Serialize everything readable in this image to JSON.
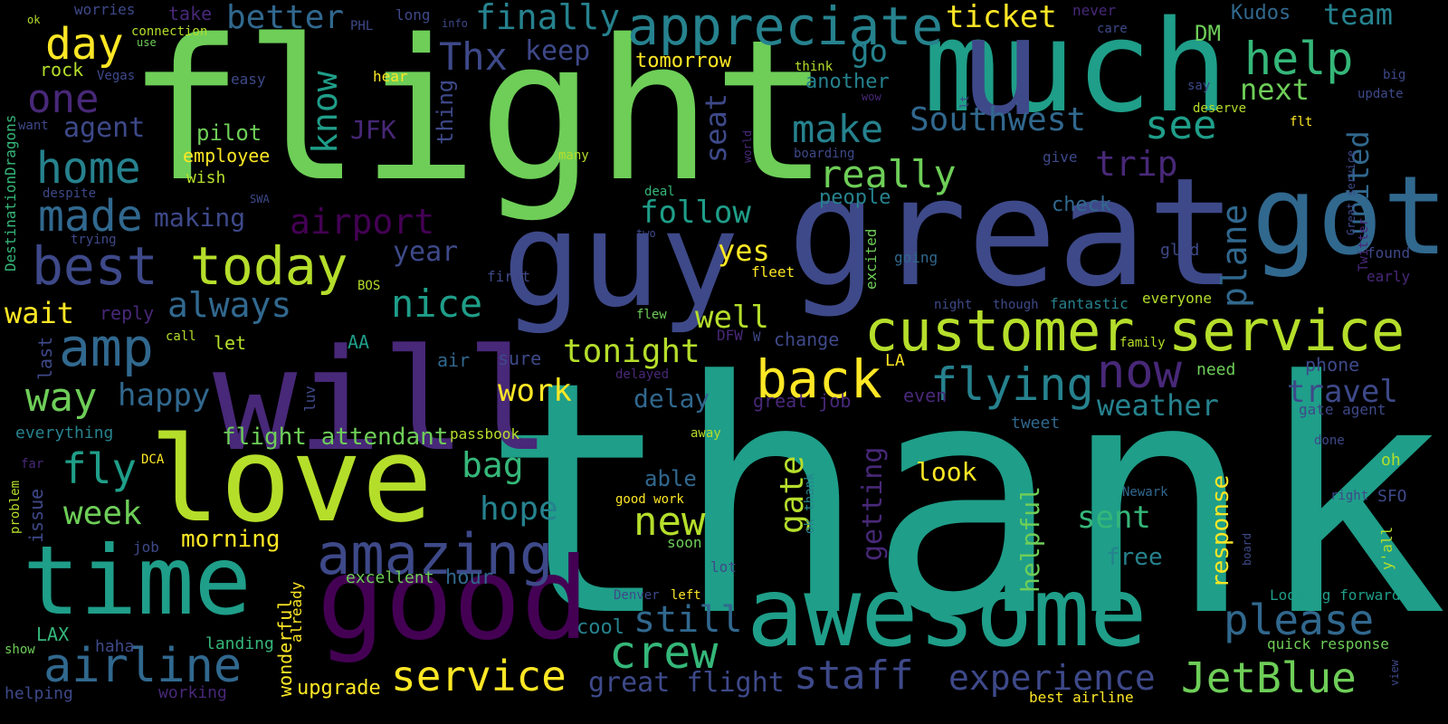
{
  "background": "#000000",
  "palette": {
    "yellow": "#fde725",
    "lime": "#b5de2b",
    "lgreen": "#6ece58",
    "green": "#35b779",
    "teal": "#1f9e89",
    "cyan": "#26828e",
    "blue": "#31688e",
    "indigo": "#3e4989",
    "purple": "#482878",
    "violet": "#440154"
  },
  "words": [
    {
      "text": "thank",
      "size": 355,
      "color": "teal"
    },
    {
      "text": "flight",
      "size": 215,
      "color": "lgreen"
    },
    {
      "text": "great",
      "size": 165,
      "color": "indigo"
    },
    {
      "text": "will",
      "size": 155,
      "color": "purple"
    },
    {
      "text": "guy",
      "size": 145,
      "color": "indigo"
    },
    {
      "text": "much",
      "size": 140,
      "color": "teal"
    },
    {
      "text": "u",
      "size": 150,
      "color": "indigo"
    },
    {
      "text": "got",
      "size": 120,
      "color": "blue"
    },
    {
      "text": "love",
      "size": 130,
      "color": "lime"
    },
    {
      "text": "good",
      "size": 125,
      "color": "violet"
    },
    {
      "text": "awesome",
      "size": 105,
      "color": "teal"
    },
    {
      "text": "time",
      "size": 105,
      "color": "teal"
    },
    {
      "text": "amazing",
      "size": 62,
      "color": "indigo"
    },
    {
      "text": "customer service",
      "size": 62,
      "color": "lime"
    },
    {
      "text": "appreciate",
      "size": 58,
      "color": "cyan"
    },
    {
      "text": "today",
      "size": 58,
      "color": "lime"
    },
    {
      "text": "best",
      "size": 58,
      "color": "indigo"
    },
    {
      "text": "back",
      "size": 58,
      "color": "yellow"
    },
    {
      "text": "amp",
      "size": 58,
      "color": "blue"
    },
    {
      "text": "help",
      "size": 50,
      "color": "green"
    },
    {
      "text": "made",
      "size": 48,
      "color": "blue"
    },
    {
      "text": "day",
      "size": 48,
      "color": "yellow"
    },
    {
      "text": "home",
      "size": 48,
      "color": "cyan"
    },
    {
      "text": "airline",
      "size": 52,
      "color": "blue"
    },
    {
      "text": "now",
      "size": 52,
      "color": "purple"
    },
    {
      "text": "flying",
      "size": 50,
      "color": "cyan"
    },
    {
      "text": "crew",
      "size": 50,
      "color": "green"
    },
    {
      "text": "service",
      "size": 46,
      "color": "yellow"
    },
    {
      "text": "JetBlue",
      "size": 46,
      "color": "lgreen"
    },
    {
      "text": "please",
      "size": 46,
      "color": "blue"
    },
    {
      "text": "staff",
      "size": 44,
      "color": "indigo"
    },
    {
      "text": "experience",
      "size": 38,
      "color": "indigo"
    },
    {
      "text": "still",
      "size": 40,
      "color": "blue"
    },
    {
      "text": "new",
      "size": 44,
      "color": "lime"
    },
    {
      "text": "nice",
      "size": 42,
      "color": "teal"
    },
    {
      "text": "fly",
      "size": 46,
      "color": "teal"
    },
    {
      "text": "way",
      "size": 44,
      "color": "lgreen"
    },
    {
      "text": "really",
      "size": 42,
      "color": "lgreen"
    },
    {
      "text": "make",
      "size": 42,
      "color": "cyan"
    },
    {
      "text": "see",
      "size": 44,
      "color": "teal"
    },
    {
      "text": "one",
      "size": 44,
      "color": "purple"
    },
    {
      "text": "better",
      "size": 36,
      "color": "blue"
    },
    {
      "text": "finally",
      "size": 38,
      "color": "cyan"
    },
    {
      "text": "Thx",
      "size": 42,
      "color": "indigo"
    },
    {
      "text": "team",
      "size": 32,
      "color": "cyan"
    },
    {
      "text": "ticket",
      "size": 34,
      "color": "yellow"
    },
    {
      "text": "next",
      "size": 32,
      "color": "lgreen"
    },
    {
      "text": "trip",
      "size": 38,
      "color": "purple"
    },
    {
      "text": "Southwest",
      "size": 36,
      "color": "blue"
    },
    {
      "text": "airport",
      "size": 38,
      "color": "violet"
    },
    {
      "text": "always",
      "size": 38,
      "color": "blue"
    },
    {
      "text": "tonight",
      "size": 36,
      "color": "lime"
    },
    {
      "text": "happy",
      "size": 34,
      "color": "blue"
    },
    {
      "text": "work",
      "size": 34,
      "color": "yellow"
    },
    {
      "text": "week",
      "size": 36,
      "color": "lgreen"
    },
    {
      "text": "bag",
      "size": 38,
      "color": "green"
    },
    {
      "text": "hope",
      "size": 36,
      "color": "cyan"
    },
    {
      "text": "sent",
      "size": 34,
      "color": "green"
    },
    {
      "text": "travel",
      "size": 34,
      "color": "indigo"
    },
    {
      "text": "weather",
      "size": 32,
      "color": "cyan"
    },
    {
      "text": "follow",
      "size": 34,
      "color": "teal"
    },
    {
      "text": "well",
      "size": 34,
      "color": "lime"
    },
    {
      "text": "yes",
      "size": 32,
      "color": "yellow"
    },
    {
      "text": "year",
      "size": 30,
      "color": "indigo"
    },
    {
      "text": "wait",
      "size": 32,
      "color": "yellow"
    },
    {
      "text": "delay",
      "size": 28,
      "color": "blue"
    },
    {
      "text": "look",
      "size": 28,
      "color": "yellow"
    },
    {
      "text": "keep",
      "size": 30,
      "color": "indigo"
    },
    {
      "text": "go",
      "size": 34,
      "color": "cyan"
    },
    {
      "text": "agent",
      "size": 30,
      "color": "indigo"
    },
    {
      "text": "making",
      "size": 28,
      "color": "indigo"
    },
    {
      "text": "morning",
      "size": 26,
      "color": "yellow"
    },
    {
      "text": "flight attendant",
      "size": 26,
      "color": "lgreen"
    },
    {
      "text": "great flight",
      "size": 30,
      "color": "indigo"
    },
    {
      "text": "free",
      "size": 26,
      "color": "cyan"
    },
    {
      "text": "tomorrow",
      "size": 22,
      "color": "yellow"
    },
    {
      "text": "another",
      "size": 22,
      "color": "cyan"
    },
    {
      "text": "pilot",
      "size": 24,
      "color": "lgreen"
    },
    {
      "text": "employee",
      "size": 20,
      "color": "yellow"
    },
    {
      "text": "people",
      "size": 22,
      "color": "cyan"
    },
    {
      "text": "check",
      "size": 22,
      "color": "blue"
    },
    {
      "text": "JFK",
      "size": 28,
      "color": "purple"
    },
    {
      "text": "hour",
      "size": 22,
      "color": "blue"
    },
    {
      "text": "cool",
      "size": 22,
      "color": "cyan"
    },
    {
      "text": "upgrade",
      "size": 22,
      "color": "yellow"
    },
    {
      "text": "excellent",
      "size": 18,
      "color": "lgreen"
    },
    {
      "text": "landing",
      "size": 18,
      "color": "green"
    },
    {
      "text": "haha",
      "size": 18,
      "color": "indigo"
    },
    {
      "text": "working",
      "size": 18,
      "color": "purple"
    },
    {
      "text": "helping",
      "size": 18,
      "color": "indigo"
    },
    {
      "text": "LAX",
      "size": 20,
      "color": "green"
    },
    {
      "text": "show",
      "size": 14,
      "color": "lgreen"
    },
    {
      "text": "job",
      "size": 16,
      "color": "indigo"
    },
    {
      "text": "AA",
      "size": 20,
      "color": "teal"
    },
    {
      "text": "let",
      "size": 20,
      "color": "lime"
    },
    {
      "text": "reply",
      "size": 20,
      "color": "purple"
    },
    {
      "text": "air",
      "size": 20,
      "color": "blue"
    },
    {
      "text": "sure",
      "size": 20,
      "color": "indigo"
    },
    {
      "text": "call",
      "size": 14,
      "color": "lime"
    },
    {
      "text": "flew",
      "size": 14,
      "color": "lgreen"
    },
    {
      "text": "BOS",
      "size": 14,
      "color": "lime"
    },
    {
      "text": "first",
      "size": 16,
      "color": "indigo"
    },
    {
      "text": "DFW",
      "size": 16,
      "color": "purple"
    },
    {
      "text": "fleet",
      "size": 16,
      "color": "yellow"
    },
    {
      "text": "two",
      "size": 12,
      "color": "indigo"
    },
    {
      "text": "deal",
      "size": 14,
      "color": "green"
    },
    {
      "text": "SWA",
      "size": 12,
      "color": "indigo"
    },
    {
      "text": "many",
      "size": 14,
      "color": "lime"
    },
    {
      "text": "boarding",
      "size": 14,
      "color": "indigo"
    },
    {
      "text": "think",
      "size": 14,
      "color": "lime"
    },
    {
      "text": "wow",
      "size": 12,
      "color": "purple"
    },
    {
      "text": "easy",
      "size": 16,
      "color": "indigo"
    },
    {
      "text": "hear",
      "size": 16,
      "color": "yellow"
    },
    {
      "text": "info",
      "size": 12,
      "color": "indigo"
    },
    {
      "text": "PHL",
      "size": 14,
      "color": "indigo"
    },
    {
      "text": "long",
      "size": 16,
      "color": "indigo"
    },
    {
      "text": "worries",
      "size": 16,
      "color": "indigo"
    },
    {
      "text": "take",
      "size": 20,
      "color": "purple"
    },
    {
      "text": "ok",
      "size": 12,
      "color": "lime"
    },
    {
      "text": "rock",
      "size": 20,
      "color": "lime"
    },
    {
      "text": "Vegas",
      "size": 14,
      "color": "indigo"
    },
    {
      "text": "use",
      "size": 12,
      "color": "lgreen"
    },
    {
      "text": "connection",
      "size": 14,
      "color": "lime"
    },
    {
      "text": "wish",
      "size": 18,
      "color": "lime"
    },
    {
      "text": "want",
      "size": 14,
      "color": "indigo"
    },
    {
      "text": "despite",
      "size": 14,
      "color": "indigo"
    },
    {
      "text": "trying",
      "size": 14,
      "color": "indigo"
    },
    {
      "text": "everything",
      "size": 18,
      "color": "cyan"
    },
    {
      "text": "far",
      "size": 14,
      "color": "purple"
    },
    {
      "text": "DCA",
      "size": 14,
      "color": "yellow"
    },
    {
      "text": "passbook",
      "size": 16,
      "color": "lime"
    },
    {
      "text": "away",
      "size": 14,
      "color": "lime"
    },
    {
      "text": "good work",
      "size": 14,
      "color": "yellow"
    },
    {
      "text": "soon",
      "size": 16,
      "color": "lgreen"
    },
    {
      "text": "able",
      "size": 24,
      "color": "blue"
    },
    {
      "text": "lot",
      "size": 16,
      "color": "indigo"
    },
    {
      "text": "Denver",
      "size": 14,
      "color": "indigo"
    },
    {
      "text": "left",
      "size": 14,
      "color": "yellow"
    },
    {
      "text": "great job",
      "size": 20,
      "color": "purple"
    },
    {
      "text": "change",
      "size": 20,
      "color": "indigo"
    },
    {
      "text": "W",
      "size": 14,
      "color": "indigo"
    },
    {
      "text": "delayed",
      "size": 14,
      "color": "purple"
    },
    {
      "text": "LA",
      "size": 18,
      "color": "yellow"
    },
    {
      "text": "even",
      "size": 20,
      "color": "purple"
    },
    {
      "text": "tweet",
      "size": 18,
      "color": "blue"
    },
    {
      "text": "fantastic",
      "size": 16,
      "color": "cyan"
    },
    {
      "text": "though",
      "size": 14,
      "color": "indigo"
    },
    {
      "text": "night",
      "size": 14,
      "color": "indigo"
    },
    {
      "text": "going",
      "size": 16,
      "color": "blue"
    },
    {
      "text": "glad",
      "size": 18,
      "color": "indigo"
    },
    {
      "text": "everyone",
      "size": 16,
      "color": "lime"
    },
    {
      "text": "family",
      "size": 14,
      "color": "lime"
    },
    {
      "text": "need",
      "size": 18,
      "color": "lgreen"
    },
    {
      "text": "give",
      "size": 16,
      "color": "indigo"
    },
    {
      "text": "care",
      "size": 14,
      "color": "indigo"
    },
    {
      "text": "never",
      "size": 16,
      "color": "purple"
    },
    {
      "text": "Kudos",
      "size": 22,
      "color": "blue"
    },
    {
      "text": "DM",
      "size": 24,
      "color": "lgreen"
    },
    {
      "text": "say",
      "size": 14,
      "color": "indigo"
    },
    {
      "text": "update",
      "size": 14,
      "color": "indigo"
    },
    {
      "text": "deserve",
      "size": 14,
      "color": "lime"
    },
    {
      "text": "flt",
      "size": 14,
      "color": "yellow"
    },
    {
      "text": "big",
      "size": 14,
      "color": "indigo"
    },
    {
      "text": "found",
      "size": 16,
      "color": "indigo"
    },
    {
      "text": "early",
      "size": 16,
      "color": "purple"
    },
    {
      "text": "phone",
      "size": 20,
      "color": "indigo"
    },
    {
      "text": "gate agent",
      "size": 16,
      "color": "indigo"
    },
    {
      "text": "oh",
      "size": 18,
      "color": "lime"
    },
    {
      "text": "done",
      "size": 14,
      "color": "indigo"
    },
    {
      "text": "right",
      "size": 14,
      "color": "indigo"
    },
    {
      "text": "SFO",
      "size": 18,
      "color": "indigo"
    },
    {
      "text": "Newark",
      "size": 14,
      "color": "blue"
    },
    {
      "text": "Looking forward",
      "size": 16,
      "color": "teal"
    },
    {
      "text": "quick response",
      "size": 16,
      "color": "lgreen"
    },
    {
      "text": "best airline",
      "size": 16,
      "color": "yellow"
    },
    {
      "text": "DestinationDragons",
      "size": 16,
      "color": "green",
      "rotate": true
    },
    {
      "text": "know",
      "size": 38,
      "color": "teal",
      "rotate": true
    },
    {
      "text": "thing",
      "size": 24,
      "color": "indigo",
      "rotate": true
    },
    {
      "text": "seat",
      "size": 32,
      "color": "indigo",
      "rotate": true
    },
    {
      "text": "world",
      "size": 12,
      "color": "purple",
      "rotate": true
    },
    {
      "text": "gate",
      "size": 36,
      "color": "lime",
      "rotate": true
    },
    {
      "text": "ok thank",
      "size": 14,
      "color": "cyan",
      "rotate": true
    },
    {
      "text": "getting",
      "size": 30,
      "color": "purple",
      "rotate": true
    },
    {
      "text": "excited",
      "size": 16,
      "color": "lgreen",
      "rotate": true
    },
    {
      "text": "helpful",
      "size": 28,
      "color": "lgreen",
      "rotate": true
    },
    {
      "text": "response",
      "size": 26,
      "color": "yellow",
      "rotate": true
    },
    {
      "text": "plane",
      "size": 38,
      "color": "blue",
      "rotate": true
    },
    {
      "text": "united",
      "size": 32,
      "color": "blue",
      "rotate": true
    },
    {
      "text": "Great service",
      "size": 12,
      "color": "indigo",
      "rotate": true
    },
    {
      "text": "Twitter",
      "size": 14,
      "color": "purple",
      "rotate": true
    },
    {
      "text": "last",
      "size": 20,
      "color": "indigo",
      "rotate": true
    },
    {
      "text": "issue",
      "size": 20,
      "color": "indigo",
      "rotate": true
    },
    {
      "text": "problem",
      "size": 14,
      "color": "lime",
      "rotate": true
    },
    {
      "text": "wonderful",
      "size": 20,
      "color": "yellow",
      "rotate": true
    },
    {
      "text": "already",
      "size": 16,
      "color": "yellow",
      "rotate": true
    },
    {
      "text": "luv",
      "size": 16,
      "color": "indigo",
      "rotate": true
    },
    {
      "text": "lt",
      "size": 12,
      "color": "indigo",
      "rotate": true
    },
    {
      "text": "board",
      "size": 12,
      "color": "indigo",
      "rotate": true
    },
    {
      "text": "y'all",
      "size": 16,
      "color": "lime",
      "rotate": true
    },
    {
      "text": "view",
      "size": 12,
      "color": "indigo",
      "rotate": true
    }
  ]
}
